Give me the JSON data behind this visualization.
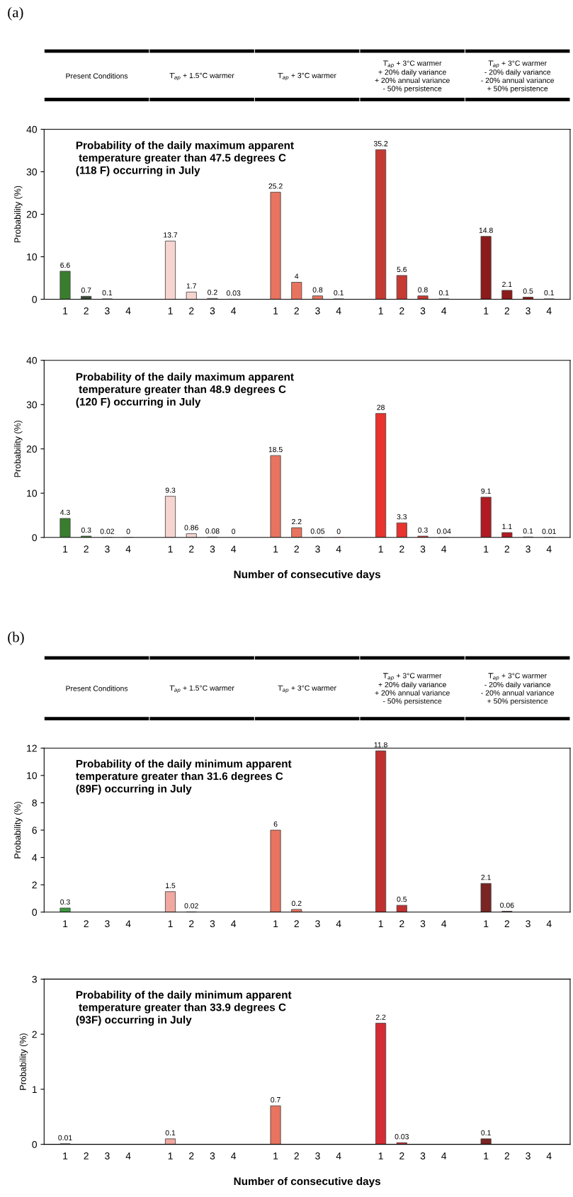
{
  "chart_data": [
    {
      "type": "bar",
      "title": "Probability of the daily maximum apparent\n temperature greater than 47.5 degrees C\n(118 F) occurring in July",
      "ylabel": "Probability (%)",
      "annotations": [
        "(a)",
        "Present Conditions",
        "T̄$_{ap}$ + 1.5°C warmer",
        "T̄$_{ap}$ + 3°C warmer",
        "T̄$_{ap}$ + 3°C warmer\n+ 20% daily variance\n+ 20% annual variance\n- 50% persistence",
        "T̄$_{ap}$ + 3°C warmer\n- 20% daily variance\n- 20% annual variance\n+ 50% persistence"
      ],
      "categories": [
        "1",
        "2",
        "3",
        "4",
        "1",
        "2",
        "3",
        "4",
        "1",
        "2",
        "3",
        "4",
        "1",
        "2",
        "3",
        "4",
        "1",
        "2",
        "3",
        "4"
      ],
      "values": [
        6.6,
        0.7,
        0.1,
        null,
        13.7,
        1.7,
        0.2,
        0.03,
        25.2,
        4,
        0.8,
        0.1,
        35.2,
        5.6,
        0.8,
        0.1,
        14.8,
        2.1,
        0.5,
        0.1
      ],
      "colors": [
        "#3a7d2e",
        "#3a4a36",
        "#3a7d2e",
        "#3a7d2e",
        "#f6d4d0",
        "#f6d4d0",
        "#f6d4d0",
        "#f6d4d0",
        "#e8735f",
        "#e8735f",
        "#e8735f",
        "#e8735f",
        "#c63a34",
        "#c63a34",
        "#c63a34",
        "#c63a34",
        "#8c1b1b",
        "#8c1b1b",
        "#8c1b1b",
        "#8c1b1b"
      ],
      "ylim": [
        0,
        40
      ],
      "yticks": [
        0,
        10,
        20,
        30,
        40
      ],
      "data_labels": true,
      "grid": false,
      "legend": false
    },
    {
      "type": "bar",
      "title": "Probability of the daily maximum apparent\n temperature greater than 48.9 degrees C\n(120 F) occurring in July",
      "ylabel": "Probability (%)",
      "xlabel": "Number of consecutive days",
      "categories": [
        "1",
        "2",
        "3",
        "4",
        "1",
        "2",
        "3",
        "4",
        "1",
        "2",
        "3",
        "4",
        "1",
        "2",
        "3",
        "4",
        "1",
        "2",
        "3",
        "4"
      ],
      "values": [
        4.3,
        0.3,
        0.02,
        0,
        9.3,
        0.86,
        0.08,
        0,
        18.5,
        2.2,
        0.05,
        0,
        28,
        3.3,
        0.3,
        0.04,
        9.1,
        1.1,
        0.1,
        0.01
      ],
      "colors": [
        "#3a7d2e",
        "#3a7d2e",
        "#3a7d2e",
        "#3a7d2e",
        "#f6d4d0",
        "#f6d4d0",
        "#f6d4d0",
        "#f6d4d0",
        "#e8735f",
        "#e8735f",
        "#e8735f",
        "#e8735f",
        "#e8332e",
        "#e8332e",
        "#e8332e",
        "#e8332e",
        "#b01a22",
        "#b01a22",
        "#b01a22",
        "#b01a22"
      ],
      "ylim": [
        0,
        40
      ],
      "yticks": [
        0,
        10,
        20,
        30,
        40
      ],
      "data_labels": true,
      "grid": false,
      "legend": false
    },
    {
      "type": "bar",
      "title": "Probability of the daily minimum apparent\ntemperature greater than 31.6 degrees C\n(89F) occurring in July",
      "ylabel": "Probability (%)",
      "annotations": [
        "(b)",
        "Present Conditions",
        "T̄$_{ap}$ + 1.5°C warmer",
        "T̄$_{ap}$ + 3°C warmer",
        "T̄$_{ap}$ + 3°C warmer\n+ 20% daily variance\n+ 20% annual variance\n- 50% persistence",
        "T̄$_{ap}$ + 3°C warmer\n- 20% daily variance\n- 20% annual variance\n+ 50% persistence"
      ],
      "categories": [
        "1",
        "2",
        "3",
        "4",
        "1",
        "2",
        "3",
        "4",
        "1",
        "2",
        "3",
        "4",
        "1",
        "2",
        "3",
        "4",
        "1",
        "2",
        "3",
        "4"
      ],
      "values": [
        0.3,
        null,
        null,
        null,
        1.5,
        0.02,
        null,
        null,
        6,
        0.2,
        null,
        null,
        11.8,
        0.5,
        null,
        null,
        2.1,
        0.06,
        null,
        null
      ],
      "colors": [
        "#3a9a3e",
        "#3a9a3e",
        "#3a9a3e",
        "#3a9a3e",
        "#f0a8a0",
        "#f0a8a0",
        "#f0a8a0",
        "#f0a8a0",
        "#e8735f",
        "#e8735f",
        "#e8735f",
        "#e8735f",
        "#c0302e",
        "#c0302e",
        "#c0302e",
        "#c0302e",
        "#7a2424",
        "#7a2424",
        "#7a2424",
        "#7a2424"
      ],
      "ylim": [
        0,
        12
      ],
      "yticks": [
        0,
        2,
        4,
        6,
        8,
        10,
        12
      ],
      "data_labels": true,
      "grid": false,
      "legend": false
    },
    {
      "type": "bar",
      "title": "Probability of the daily minimum apparent\n temperature greater than 33.9 degrees C\n(93F) occurring in July",
      "ylabel": "Probability (%)",
      "xlabel": "Number of consecutive days",
      "categories": [
        "1",
        "2",
        "3",
        "4",
        "1",
        "2",
        "3",
        "4",
        "1",
        "2",
        "3",
        "4",
        "1",
        "2",
        "3",
        "4",
        "1",
        "2",
        "3",
        "4"
      ],
      "values": [
        0.01,
        null,
        null,
        null,
        0.1,
        null,
        null,
        null,
        0.7,
        null,
        null,
        null,
        2.2,
        0.03,
        null,
        null,
        0.1,
        null,
        null,
        null
      ],
      "colors": [
        "#3a7d2e",
        "#3a7d2e",
        "#3a7d2e",
        "#3a7d2e",
        "#f0a8a0",
        "#f0a8a0",
        "#f0a8a0",
        "#f0a8a0",
        "#e8735f",
        "#e8735f",
        "#e8735f",
        "#e8735f",
        "#d42c34",
        "#d42c34",
        "#d42c34",
        "#d42c34",
        "#7a2424",
        "#7a2424",
        "#7a2424",
        "#7a2424"
      ],
      "ylim": [
        0,
        3
      ],
      "yticks": [
        0,
        1,
        2,
        3
      ],
      "data_labels": true,
      "grid": false,
      "legend": false
    }
  ]
}
